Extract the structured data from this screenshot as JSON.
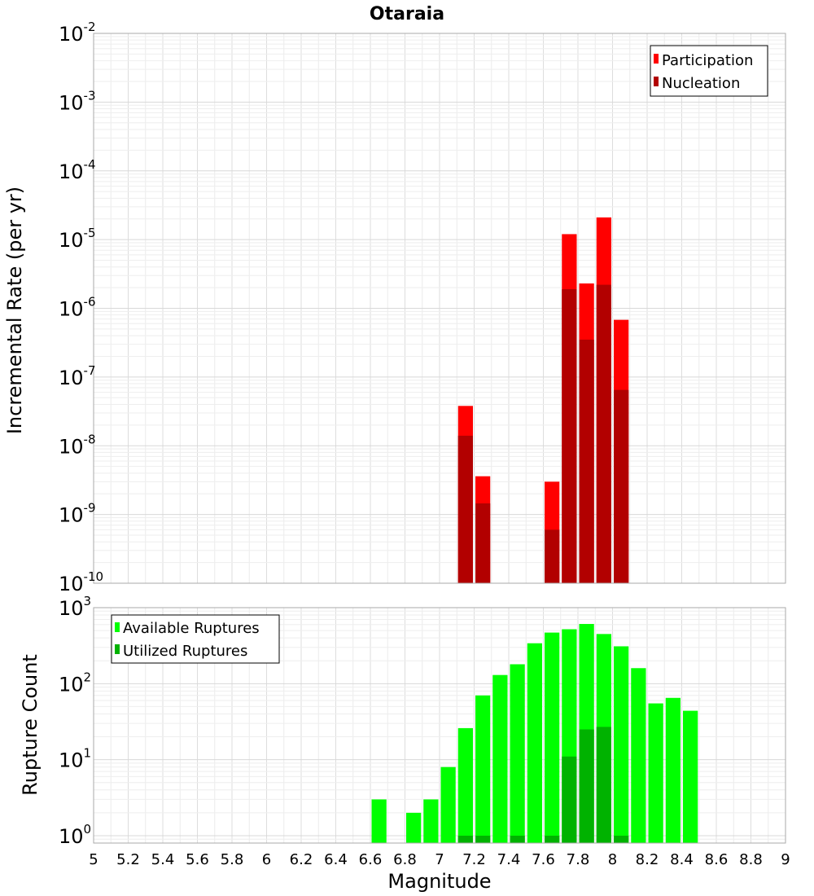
{
  "chart_data": [
    {
      "type": "bar",
      "title": "Otaraia",
      "ylabel": "Incremental Rate (per yr)",
      "xlabel": "",
      "yscale": "log",
      "ylim": [
        1e-10,
        0.01
      ],
      "xlim": [
        5,
        9
      ],
      "bar_width": 0.1,
      "grid": true,
      "legend_position": "top-right",
      "yticks": [
        {
          "base": "10",
          "exp": "-2",
          "value": 0.01
        },
        {
          "base": "10",
          "exp": "-3",
          "value": 0.001
        },
        {
          "base": "10",
          "exp": "-4",
          "value": 0.0001
        },
        {
          "base": "10",
          "exp": "-5",
          "value": 1e-05
        },
        {
          "base": "10",
          "exp": "-6",
          "value": 1e-06
        },
        {
          "base": "10",
          "exp": "-7",
          "value": 1e-07
        },
        {
          "base": "10",
          "exp": "-8",
          "value": 1e-08
        },
        {
          "base": "10",
          "exp": "-9",
          "value": 1e-09
        },
        {
          "base": "10",
          "exp": "-10",
          "value": 1e-10
        }
      ],
      "series": [
        {
          "name": "Participation",
          "color": "#ff0000",
          "x": [
            7.15,
            7.25,
            7.65,
            7.75,
            7.85,
            7.95,
            8.05
          ],
          "values": [
            3.8e-08,
            3.6e-09,
            3e-09,
            1.2e-05,
            2.3e-06,
            2.1e-05,
            6.8e-07
          ]
        },
        {
          "name": "Nucleation",
          "color": "#b20000",
          "x": [
            7.15,
            7.25,
            7.65,
            7.75,
            7.85,
            7.95,
            8.05
          ],
          "values": [
            1.4e-08,
            1.45e-09,
            6e-10,
            1.9e-06,
            3.5e-07,
            2.2e-06,
            6.5e-08
          ]
        }
      ]
    },
    {
      "type": "bar",
      "title": "",
      "ylabel": "Rupture Count",
      "xlabel": "Magnitude",
      "yscale": "log",
      "ylim": [
        0.8,
        1000
      ],
      "xlim": [
        5,
        9
      ],
      "bar_width": 0.1,
      "grid": true,
      "legend_position": "top-left",
      "xticks": [
        "5",
        "5.2",
        "5.4",
        "5.6",
        "5.8",
        "6",
        "6.2",
        "6.4",
        "6.6",
        "6.8",
        "7",
        "7.2",
        "7.4",
        "7.6",
        "7.8",
        "8",
        "8.2",
        "8.4",
        "8.6",
        "8.8",
        "9"
      ],
      "yticks": [
        {
          "base": "10",
          "exp": "3",
          "value": 1000
        },
        {
          "base": "10",
          "exp": "2",
          "value": 100
        },
        {
          "base": "10",
          "exp": "1",
          "value": 10
        },
        {
          "base": "10",
          "exp": "0",
          "value": 1
        }
      ],
      "series": [
        {
          "name": "Available Ruptures",
          "color": "#00ff00",
          "x": [
            6.65,
            6.85,
            6.95,
            7.05,
            7.15,
            7.25,
            7.35,
            7.45,
            7.55,
            7.65,
            7.75,
            7.85,
            7.95,
            8.05,
            8.15,
            8.25,
            8.35,
            8.45
          ],
          "values": [
            3,
            2,
            3,
            8,
            26,
            70,
            130,
            180,
            340,
            470,
            520,
            610,
            450,
            310,
            160,
            55,
            65,
            44
          ]
        },
        {
          "name": "Utilized Ruptures",
          "color": "#00b200",
          "x": [
            7.15,
            7.25,
            7.45,
            7.65,
            7.75,
            7.85,
            7.95,
            8.05
          ],
          "values": [
            1,
            1,
            1,
            1,
            11,
            25,
            27,
            1
          ]
        }
      ]
    }
  ]
}
